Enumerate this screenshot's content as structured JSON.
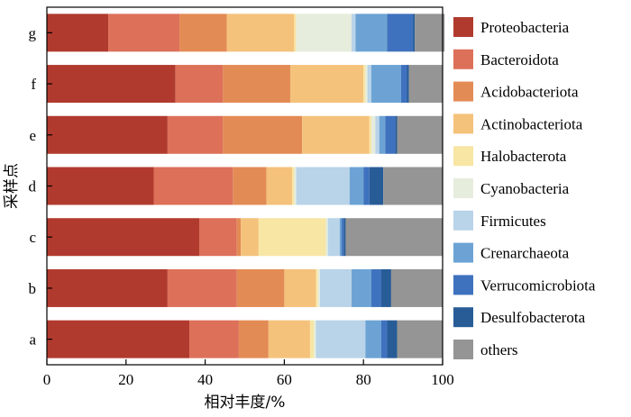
{
  "chart_data": {
    "type": "bar",
    "orientation": "horizontal",
    "stacked": true,
    "categories": [
      "a",
      "b",
      "c",
      "d",
      "e",
      "f",
      "g"
    ],
    "xlabel": "相对丰度/%",
    "ylabel": "采样点",
    "xlim": [
      0,
      100
    ],
    "xticks": [
      "0",
      "20",
      "40",
      "60",
      "80",
      "100"
    ],
    "grid": false,
    "legend_position": "right",
    "series": [
      {
        "name": "Proteobacteria",
        "color": "#B13A2E",
        "values": [
          36.0,
          30.5,
          38.5,
          27.0,
          30.5,
          32.5,
          15.5
        ]
      },
      {
        "name": "Bacteroidota",
        "color": "#DD7059",
        "values": [
          12.5,
          17.5,
          9.5,
          20.0,
          14.0,
          12.0,
          18.0
        ]
      },
      {
        "name": "Acidobacteriota",
        "color": "#E38B55",
        "values": [
          7.5,
          12.0,
          1.0,
          8.5,
          20.0,
          17.0,
          12.0
        ]
      },
      {
        "name": "Actinobacteriota",
        "color": "#F4C27B",
        "values": [
          10.5,
          8.0,
          4.5,
          6.5,
          17.0,
          18.5,
          17.0
        ]
      },
      {
        "name": "Halobacterota",
        "color": "#F7E6A4",
        "values": [
          1.0,
          0.5,
          17.0,
          0.5,
          0.5,
          0.5,
          0.5
        ]
      },
      {
        "name": "Cyanobacteria",
        "color": "#E6EDDC",
        "values": [
          0.5,
          0.5,
          0.5,
          0.5,
          1.0,
          0.5,
          14.0
        ]
      },
      {
        "name": "Firmicutes",
        "color": "#B9D3E8",
        "values": [
          12.5,
          8.0,
          3.0,
          13.5,
          1.0,
          1.0,
          1.0
        ]
      },
      {
        "name": "Crenarchaeota",
        "color": "#6CA3D4",
        "values": [
          4.0,
          5.0,
          0.5,
          3.5,
          1.5,
          7.5,
          8.0
        ]
      },
      {
        "name": "Verrucomicrobiota",
        "color": "#3F72BE",
        "values": [
          1.5,
          2.5,
          0.5,
          1.5,
          2.5,
          1.5,
          6.5
        ]
      },
      {
        "name": "Desulfobacterota",
        "color": "#285C97",
        "values": [
          2.5,
          2.5,
          0.5,
          3.5,
          0.5,
          0.5,
          0.5
        ]
      },
      {
        "name": "others",
        "color": "#959595",
        "values": [
          11.5,
          13.0,
          24.5,
          15.0,
          11.5,
          8.5,
          7.5
        ]
      }
    ]
  }
}
